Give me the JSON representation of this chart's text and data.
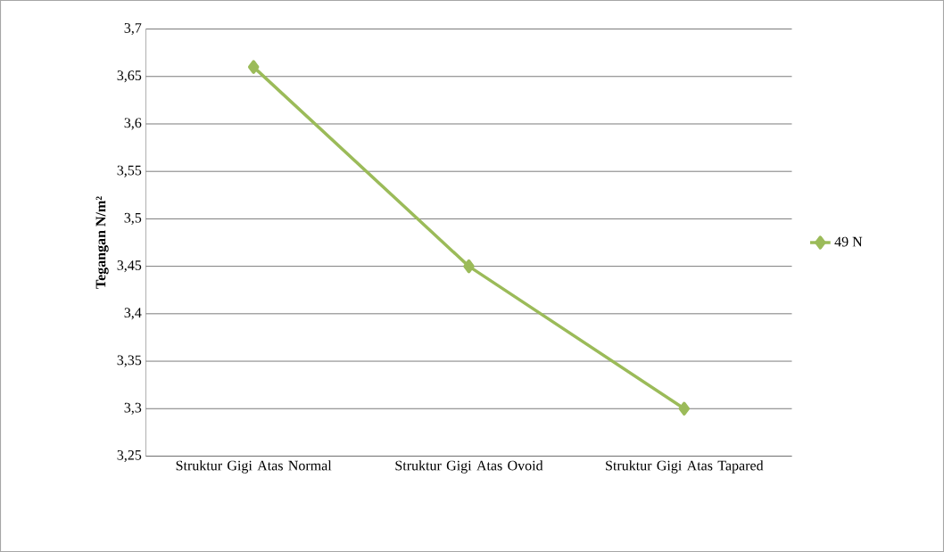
{
  "chart_data": {
    "type": "line",
    "ylabel": "Tegangan N/m²",
    "categories": [
      "Struktur Gigi Atas Normal",
      "Struktur Gigi Atas Ovoid",
      "Struktur Gigi Atas Tapared"
    ],
    "series": [
      {
        "name": "49 N",
        "color": "#9bbb59",
        "values": [
          3.66,
          3.45,
          3.3
        ]
      }
    ],
    "ylim": [
      3.25,
      3.7
    ],
    "yticks": [
      {
        "value": 3.25,
        "label": "3,25"
      },
      {
        "value": 3.3,
        "label": "3,3"
      },
      {
        "value": 3.35,
        "label": "3,35"
      },
      {
        "value": 3.4,
        "label": "3,4"
      },
      {
        "value": 3.45,
        "label": "3,45"
      },
      {
        "value": 3.5,
        "label": "3,5"
      },
      {
        "value": 3.55,
        "label": "3,55"
      },
      {
        "value": 3.6,
        "label": "3,6"
      },
      {
        "value": 3.65,
        "label": "3,65"
      },
      {
        "value": 3.7,
        "label": "3,7"
      }
    ],
    "grid": "y",
    "legend": "right",
    "marker": "diamond",
    "line_style": "solid"
  }
}
